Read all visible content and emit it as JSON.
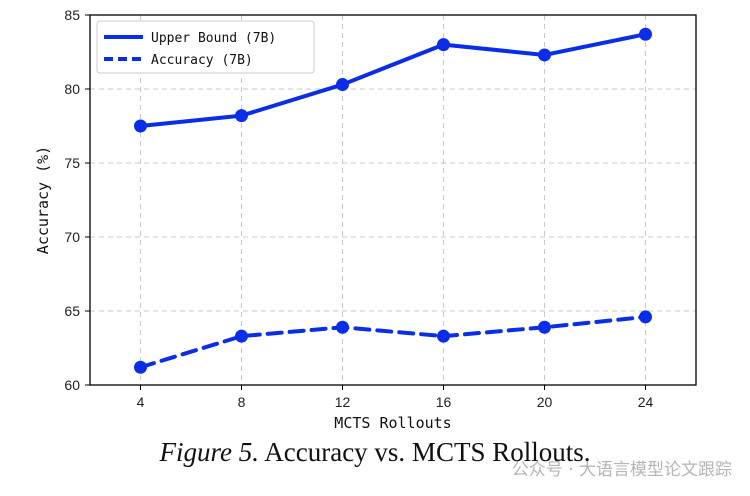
{
  "chart_data": {
    "type": "line",
    "title": "",
    "xlabel": "MCTS Rollouts",
    "ylabel": "Accuracy (%)",
    "x": [
      4,
      8,
      12,
      16,
      20,
      24
    ],
    "xlim": [
      2,
      26
    ],
    "ylim": [
      60,
      85
    ],
    "xticks": [
      4,
      8,
      12,
      16,
      20,
      24
    ],
    "yticks": [
      60,
      65,
      70,
      75,
      80,
      85
    ],
    "grid": true,
    "legend_position": "top-left",
    "series": [
      {
        "name": "Upper Bound (7B)",
        "values": [
          77.5,
          78.2,
          80.3,
          83.0,
          82.3,
          83.7
        ],
        "style": "solid",
        "color": "#0a2ee8"
      },
      {
        "name": "Accuracy (7B)",
        "values": [
          61.2,
          63.3,
          63.9,
          63.3,
          63.9,
          64.6
        ],
        "style": "dashed",
        "color": "#0a2ee8"
      }
    ]
  },
  "caption": {
    "figure_label": "Figure 5.",
    "text": "Accuracy vs. MCTS Rollouts."
  },
  "watermark": "公众号 · 大语言模型论文跟踪"
}
